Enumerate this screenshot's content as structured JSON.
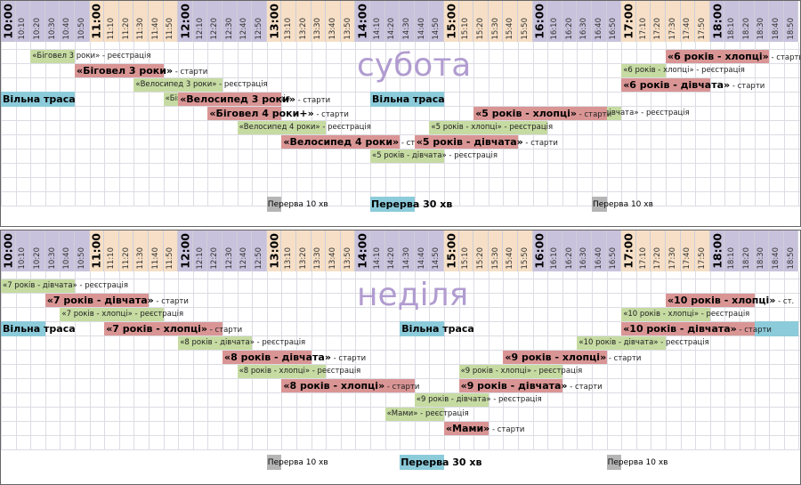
{
  "colors": {
    "reg": "#c6dba2",
    "start": "#d99594",
    "free": "#8ccbda",
    "break": "#b5b5b5",
    "day": "#b19cd0",
    "hour_even": "#c9c2dc",
    "hour_odd": "#f6dfc6"
  },
  "time_slots": [
    "10:00",
    "10:10",
    "10:20",
    "10:30",
    "10:40",
    "10:50",
    "11:00",
    "11:10",
    "11:20",
    "11:30",
    "11:40",
    "11:50",
    "12:00",
    "12:10",
    "12:20",
    "12:30",
    "12:40",
    "12:50",
    "13:00",
    "13:10",
    "13:20",
    "13:30",
    "13:40",
    "13:50",
    "14:00",
    "14:10",
    "14:20",
    "14:30",
    "14:40",
    "14:50",
    "15:00",
    "15:10",
    "15:20",
    "15:30",
    "15:40",
    "15:50",
    "16:00",
    "16:10",
    "16:20",
    "16:30",
    "16:40",
    "16:50",
    "17:00",
    "17:10",
    "17:20",
    "17:30",
    "17:40",
    "17:50",
    "18:00",
    "18:10",
    "18:20",
    "18:30",
    "18:40",
    "18:50"
  ],
  "days": [
    {
      "name": "субота",
      "events": [
        {
          "row": 1,
          "start": 2,
          "end": 5,
          "type": "reg",
          "title": "«Біговел 3 роки»",
          "suffix": " - реєстрація"
        },
        {
          "row": 1,
          "start": 45,
          "end": 52,
          "type": "start",
          "title": "«6 років - хлопці»",
          "suffix": " - старти"
        },
        {
          "row": 2,
          "start": 5,
          "end": 11,
          "type": "start",
          "title": "«Біговел 3 роки»",
          "suffix": " - старти"
        },
        {
          "row": 2,
          "start": 42,
          "end": 45,
          "type": "reg",
          "title": "«6 років - хлопці»",
          "suffix": " - реєстрація"
        },
        {
          "row": 3,
          "start": 9,
          "end": 15,
          "type": "reg",
          "title": "«Велосипед 3 роки»",
          "suffix": " - реєстрація"
        },
        {
          "row": 3,
          "start": 42,
          "end": 48,
          "type": "start",
          "title": "«6 років - дівчата»",
          "suffix": " - старти"
        },
        {
          "row": 4,
          "start": 11,
          "end": 15,
          "type": "reg",
          "title": "«Біговел 4 роки+»",
          "suffix": " - реєстрація"
        },
        {
          "row": 4,
          "start": 12,
          "end": 19,
          "type": "start",
          "title": "«Велосипед 3 роки»",
          "suffix": " - старти"
        },
        {
          "row": 5,
          "start": 38,
          "end": 42,
          "type": "reg",
          "title": "«6 років - дівчата»",
          "suffix": " - реєстрація"
        },
        {
          "row": 5,
          "start": 14,
          "end": 19,
          "type": "start",
          "title": "«Біговел 4 роки+»",
          "suffix": " - старти"
        },
        {
          "row": 5,
          "start": 32,
          "end": 41,
          "type": "start",
          "title": "«5 років - хлопці»",
          "suffix": " - старти"
        },
        {
          "row": 6,
          "start": 16,
          "end": 22,
          "type": "reg",
          "title": "«Велосипед 4 роки»",
          "suffix": " - реєстрація"
        },
        {
          "row": 6,
          "start": 29,
          "end": 37,
          "type": "reg",
          "title": "«5 років - хлопці»",
          "suffix": " - реєстрація"
        },
        {
          "row": 7,
          "start": 19,
          "end": 27,
          "type": "start",
          "title": "«Велосипед 4 роки»",
          "suffix": " - старти"
        },
        {
          "row": 7,
          "start": 28,
          "end": 35,
          "type": "start",
          "title": "«5 років - дівчата»",
          "suffix": " - старти"
        },
        {
          "row": 8,
          "start": 25,
          "end": 30,
          "type": "reg",
          "title": "«5 років - дівчата»",
          "suffix": " - реєстрація"
        }
      ],
      "free": [
        {
          "row": 4,
          "start": 0,
          "end": 5,
          "label": "Вільна траса"
        },
        {
          "row": 4,
          "start": 25,
          "end": 30,
          "label": "Вільна траса"
        }
      ],
      "breaks": [
        {
          "start": 18,
          "label": "Перерва 10 хв",
          "bold": false
        },
        {
          "start": 25,
          "label": "Перерва 30 хв",
          "bold": true,
          "blue": true
        },
        {
          "start": 40,
          "label": "Перерва 10 хв",
          "bold": false
        }
      ]
    },
    {
      "name": "неділя",
      "events": [
        {
          "row": 1,
          "start": 0,
          "end": 5,
          "type": "reg",
          "title": "«7 років - дівчата»",
          "suffix": " - реєстрація"
        },
        {
          "row": 2,
          "start": 3,
          "end": 10,
          "type": "start",
          "title": "«7 років - дівчата»",
          "suffix": " - старти"
        },
        {
          "row": 2,
          "start": 45,
          "end": 51,
          "type": "start",
          "title": "«10 років - хлопці»",
          "suffix": " - ст."
        },
        {
          "row": 3,
          "start": 4,
          "end": 11,
          "type": "reg",
          "title": "«7 років - хлопці»",
          "suffix": " - реєстрація"
        },
        {
          "row": 3,
          "start": 42,
          "end": 48,
          "type": "reg",
          "title": "«10 років - хлопці»",
          "suffix": " - реєстрація"
        },
        {
          "row": 4,
          "start": 7,
          "end": 15,
          "type": "start",
          "title": "«7 років - хлопці»",
          "suffix": " - старти"
        },
        {
          "row": 4,
          "start": 42,
          "end": 51,
          "type": "start",
          "title": "«10 років - дівчата»",
          "suffix": " - старти"
        },
        {
          "row": 5,
          "start": 12,
          "end": 17,
          "type": "reg",
          "title": "«8 років - дівчата»",
          "suffix": " - реєстрація"
        },
        {
          "row": 5,
          "start": 39,
          "end": 45,
          "type": "reg",
          "title": "«10 років - дівчата»",
          "suffix": " - реєстрація"
        },
        {
          "row": 6,
          "start": 15,
          "end": 21,
          "type": "start",
          "title": "«8 років - дівчата»",
          "suffix": " - старти"
        },
        {
          "row": 6,
          "start": 34,
          "end": 41,
          "type": "start",
          "title": "«9 років - хлопці»",
          "suffix": " - старти"
        },
        {
          "row": 7,
          "start": 16,
          "end": 22,
          "type": "reg",
          "title": "«8 років - хлопці»",
          "suffix": " - реєстрація"
        },
        {
          "row": 7,
          "start": 31,
          "end": 38,
          "type": "reg",
          "title": "«9 років - хлопці»",
          "suffix": " - реєстрація"
        },
        {
          "row": 8,
          "start": 19,
          "end": 28,
          "type": "start",
          "title": "«8 років - хлопці»",
          "suffix": " - старти"
        },
        {
          "row": 8,
          "start": 31,
          "end": 38,
          "type": "start",
          "title": "«9 років - дівчата»",
          "suffix": " - старти"
        },
        {
          "row": 9,
          "start": 28,
          "end": 33,
          "type": "reg",
          "title": "«9 років - дівчата»",
          "suffix": " - реєстрація"
        },
        {
          "row": 10,
          "start": 26,
          "end": 30,
          "type": "reg",
          "title": "«Мами»",
          "suffix": " - реєстрація"
        },
        {
          "row": 11,
          "start": 30,
          "end": 33,
          "type": "start",
          "title": "«Мами»",
          "suffix": " - старти"
        }
      ],
      "free": [
        {
          "row": 4,
          "start": 0,
          "end": 3,
          "label": "Вільна траса"
        },
        {
          "row": 4,
          "start": 27,
          "end": 30,
          "label": "Вільна траса"
        },
        {
          "row": 4,
          "start": 51,
          "end": 54,
          "label": ""
        }
      ],
      "breaks": [
        {
          "start": 18,
          "label": "Перерва 10 хв",
          "bold": false
        },
        {
          "start": 27,
          "label": "Перерва 30 хв",
          "bold": true,
          "blue": true
        },
        {
          "start": 41,
          "label": "Перерва 10 хв",
          "bold": false
        }
      ]
    }
  ]
}
